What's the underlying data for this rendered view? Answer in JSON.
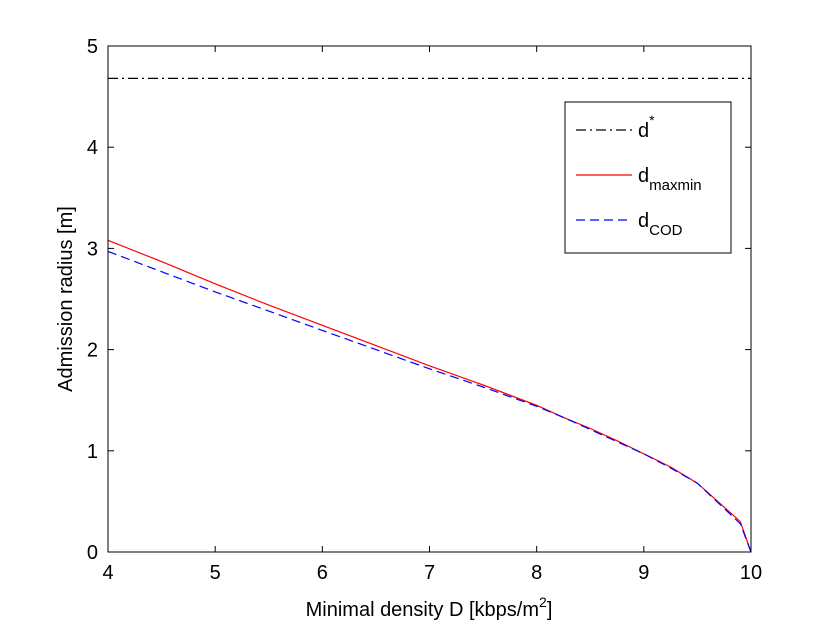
{
  "chart_data": {
    "type": "line",
    "title": "",
    "xlabel": "Minimal density D [kbps/m",
    "xlabel_sup": "2",
    "xlabel_end": "]",
    "ylabel": "Admission radius [m]",
    "xlim": [
      4,
      10
    ],
    "ylim": [
      0,
      5
    ],
    "xticks": [
      4,
      5,
      6,
      7,
      8,
      9,
      10
    ],
    "yticks": [
      0,
      1,
      2,
      3,
      4,
      5
    ],
    "grid": false,
    "legend_position": "top-right",
    "series": [
      {
        "name": "d*",
        "label_main": "d",
        "label_sup": "*",
        "label_sub": "",
        "color": "#000000",
        "dash": "dashdot",
        "x": [
          4,
          10
        ],
        "y": [
          4.68,
          4.68
        ]
      },
      {
        "name": "d_maxmin",
        "label_main": "d",
        "label_sup": "",
        "label_sub": "maxmin",
        "color": "#ff0000",
        "dash": "solid",
        "x": [
          4,
          4.5,
          5,
          5.5,
          6,
          6.5,
          7,
          7.5,
          8,
          8.25,
          8.5,
          8.75,
          9,
          9.25,
          9.5,
          9.9,
          10
        ],
        "y": [
          3.08,
          2.87,
          2.65,
          2.44,
          2.24,
          2.04,
          1.84,
          1.65,
          1.45,
          1.33,
          1.22,
          1.1,
          0.97,
          0.84,
          0.68,
          0.3,
          0.0
        ]
      },
      {
        "name": "d_COD",
        "label_main": "d",
        "label_sup": "",
        "label_sub": "COD",
        "color": "#0000ff",
        "dash": "dashed",
        "x": [
          4,
          4.5,
          5,
          5.5,
          6,
          6.5,
          7,
          7.5,
          8,
          8.25,
          8.5,
          8.75,
          9,
          9.25,
          9.5,
          9.9,
          10
        ],
        "y": [
          2.97,
          2.77,
          2.57,
          2.38,
          2.19,
          2.0,
          1.81,
          1.63,
          1.44,
          1.33,
          1.21,
          1.09,
          0.97,
          0.83,
          0.68,
          0.28,
          0.0
        ]
      }
    ]
  }
}
